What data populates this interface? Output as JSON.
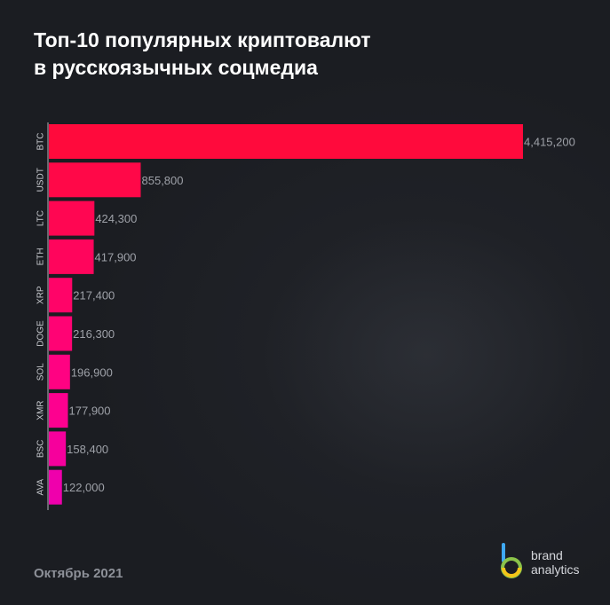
{
  "title": {
    "line1": "Топ-10 популярных криптовалют",
    "line2": "в русскоязычных соцмедиа"
  },
  "footer": {
    "date": "Октябрь 2021"
  },
  "logo": {
    "line1": "brand",
    "line2": "analytics",
    "colors": [
      "#3fa9f5",
      "#8bc34a",
      "#f5c518"
    ]
  },
  "chart_data": {
    "type": "bar",
    "orientation": "horizontal",
    "categories": [
      "BTC",
      "USDT",
      "LTC",
      "ETH",
      "XRP",
      "DOGE",
      "SOL",
      "XMR",
      "BSC",
      "AVA"
    ],
    "values": [
      4415200,
      855800,
      424300,
      417900,
      217400,
      216300,
      196900,
      177900,
      158400,
      122000
    ],
    "value_labels": [
      "4,415,200",
      "855,800",
      "424,300",
      "417,900",
      "217,400",
      "216,300",
      "196,900",
      "177,900",
      "158,400",
      "122,000"
    ],
    "bar_colors": [
      "#ff0a3c",
      "#ff0848",
      "#ff0652",
      "#ff055c",
      "#ff0468",
      "#ff0374",
      "#ff0282",
      "#fd018f",
      "#f6009c",
      "#ef00ac"
    ],
    "title": "Топ-10 популярных криптовалют в русскоязычных соцмедиа",
    "xlabel": "",
    "ylabel": "",
    "xlim": [
      0,
      4415200
    ],
    "grid": false,
    "legend": "none",
    "colors": {
      "background": "#1b1d22",
      "title": "#ffffff",
      "value_label": "#9ea1a8",
      "category_label": "#c9cbd0",
      "axis": "#b0b3b9",
      "footer": "#8d9098"
    }
  }
}
